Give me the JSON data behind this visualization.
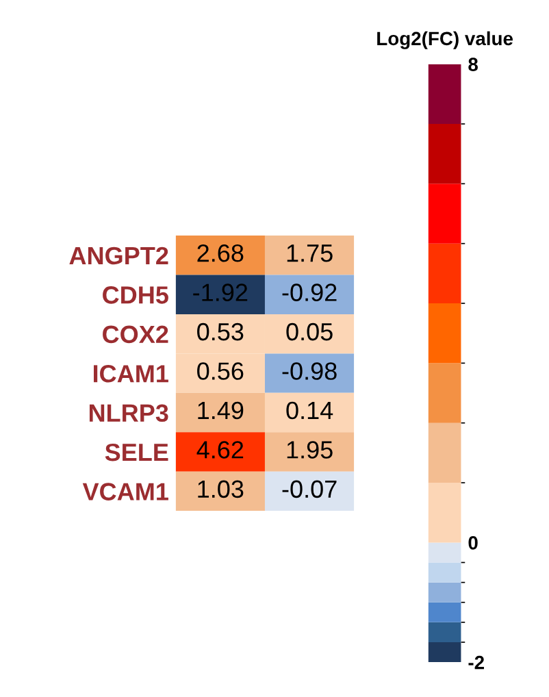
{
  "chart_data": {
    "type": "heatmap",
    "clabel": "Log2(FC) value",
    "categories": [
      null,
      null
    ],
    "y_categories": [
      "ANGPT2",
      "CDH5",
      "COX2",
      "ICAM1",
      "NLRP3",
      "SELE",
      "VCAM1"
    ],
    "cells": [
      [
        2.68,
        1.75
      ],
      [
        -1.92,
        -0.92
      ],
      [
        0.53,
        0.05
      ],
      [
        0.56,
        -0.98
      ],
      [
        1.49,
        0.14
      ],
      [
        4.62,
        1.95
      ],
      [
        1.03,
        -0.07
      ]
    ],
    "data_labels": true,
    "clim": [
      -2,
      8
    ],
    "cticks": [
      -2,
      0,
      8
    ]
  }
}
